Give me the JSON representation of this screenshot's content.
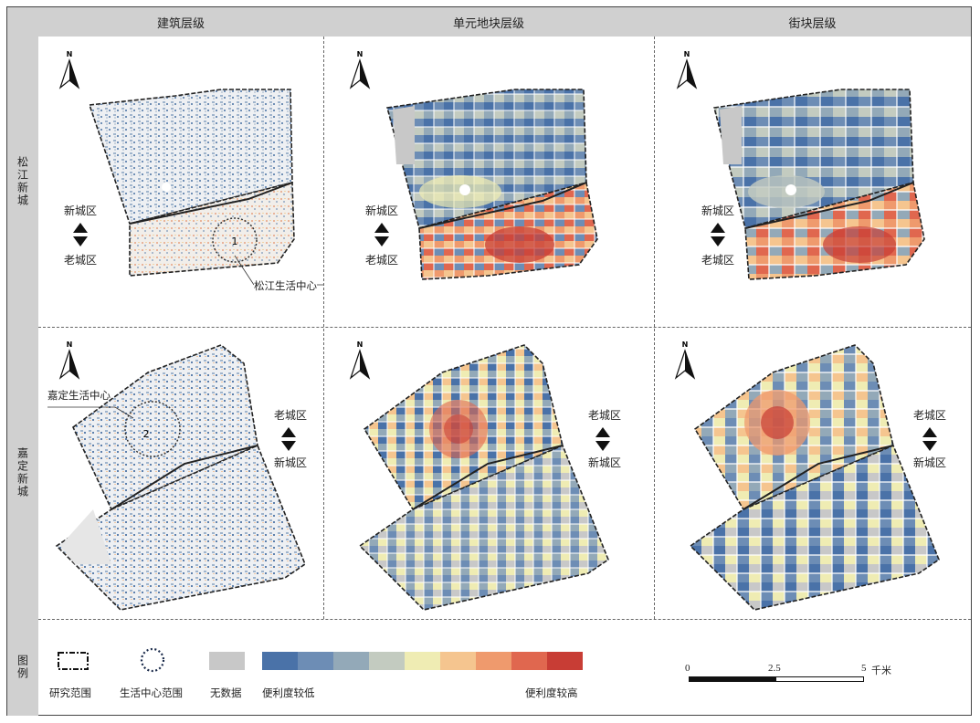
{
  "columns": [
    "建筑层级",
    "单元地块层级",
    "街块层级"
  ],
  "rows": [
    "松江新城",
    "嘉定新城"
  ],
  "legend_title": "图例",
  "districts": {
    "new": "新城区",
    "old": "老城区"
  },
  "centers": {
    "songjiang": "松江生活中心",
    "jiading": "嘉定生活中心",
    "num1": "1",
    "num2": "2"
  },
  "north": "N",
  "legend": {
    "boundary": "研究范围",
    "center_range": "生活中心范围",
    "no_data": "无数据",
    "low": "便利度较低",
    "high": "便利度较高",
    "colors": [
      "#4a72a8",
      "#6d8db5",
      "#93a9b8",
      "#c3cbc0",
      "#efecb3",
      "#f5c58f",
      "#ef9a6d",
      "#e0674f",
      "#c83d35"
    ],
    "no_data_color": "#c8c8c8"
  },
  "scale": {
    "ticks": [
      "0",
      "2.5",
      "5"
    ],
    "unit": "千米"
  }
}
